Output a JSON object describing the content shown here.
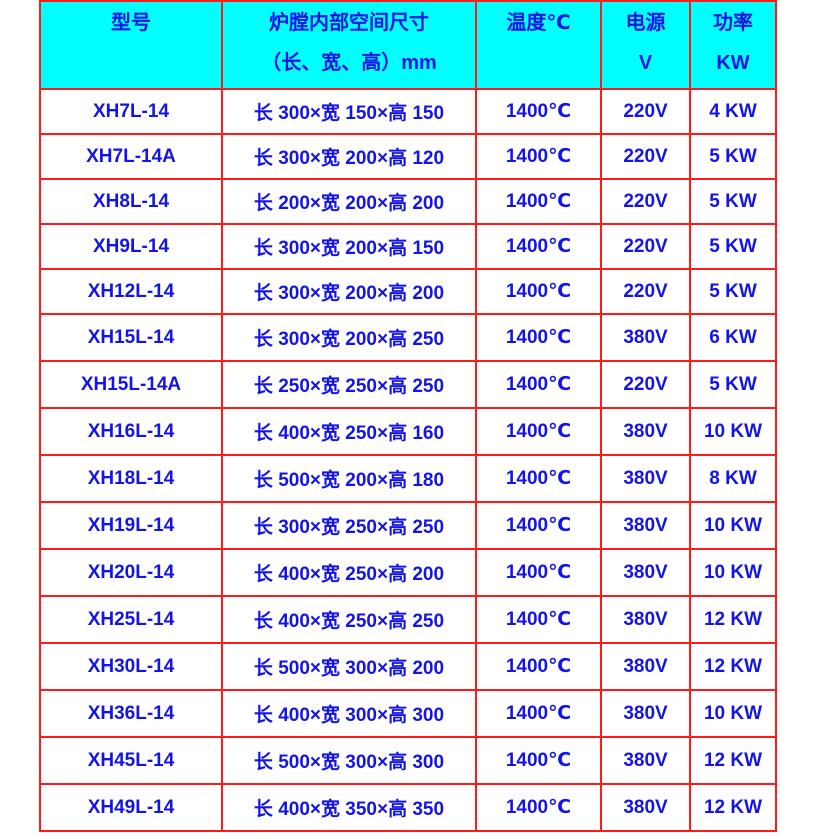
{
  "header": {
    "model": "型号",
    "chamber_line1": "炉膛内部空间尺寸",
    "chamber_line2": "（长、宽、高）mm",
    "temperature": "温度℃",
    "power_supply_line1": "电源",
    "power_supply_line2": "V",
    "power_line1": "功率",
    "power_line2": "KW"
  },
  "colors": {
    "border": "#ff1a1a",
    "header_bg": "#00ffff",
    "text": "#1414e6"
  },
  "rows": [
    {
      "model": "XH7L-14",
      "dims": "长 300×宽 150×高 150",
      "temp": "1400℃",
      "voltage": "220V",
      "power": "4 KW"
    },
    {
      "model": "XH7L-14A",
      "dims": "长 300×宽 200×高 120",
      "temp": "1400℃",
      "voltage": "220V",
      "power": "5 KW"
    },
    {
      "model": "XH8L-14",
      "dims": "长 200×宽 200×高 200",
      "temp": "1400℃",
      "voltage": "220V",
      "power": "5 KW"
    },
    {
      "model": "XH9L-14",
      "dims": "长 300×宽 200×高 150",
      "temp": "1400℃",
      "voltage": "220V",
      "power": "5 KW"
    },
    {
      "model": "XH12L-14",
      "dims": "长 300×宽 200×高 200",
      "temp": "1400℃",
      "voltage": "220V",
      "power": "5 KW"
    },
    {
      "model": "XH15L-14",
      "dims": "长 300×宽 200×高 250",
      "temp": "1400℃",
      "voltage": "380V",
      "power": "6 KW"
    },
    {
      "model": "XH15L-14A",
      "dims": "长 250×宽 250×高 250",
      "temp": "1400℃",
      "voltage": "220V",
      "power": "5 KW"
    },
    {
      "model": "XH16L-14",
      "dims": "长 400×宽 250×高 160",
      "temp": "1400℃",
      "voltage": "380V",
      "power": "10 KW"
    },
    {
      "model": "XH18L-14",
      "dims": "长 500×宽 200×高 180",
      "temp": "1400℃",
      "voltage": "380V",
      "power": "8 KW"
    },
    {
      "model": "XH19L-14",
      "dims": "长 300×宽 250×高 250",
      "temp": "1400℃",
      "voltage": "380V",
      "power": "10 KW"
    },
    {
      "model": "XH20L-14",
      "dims": "长 400×宽 250×高 200",
      "temp": "1400℃",
      "voltage": "380V",
      "power": "10 KW"
    },
    {
      "model": "XH25L-14",
      "dims": "长 400×宽 250×高 250",
      "temp": "1400℃",
      "voltage": "380V",
      "power": "12 KW"
    },
    {
      "model": "XH30L-14",
      "dims": "长 500×宽 300×高 200",
      "temp": "1400℃",
      "voltage": "380V",
      "power": "12 KW"
    },
    {
      "model": "XH36L-14",
      "dims": "长 400×宽 300×高 300",
      "temp": "1400℃",
      "voltage": "380V",
      "power": "10 KW"
    },
    {
      "model": "XH45L-14",
      "dims": "长 500×宽 300×高 300",
      "temp": "1400℃",
      "voltage": "380V",
      "power": "12 KW"
    },
    {
      "model": "XH49L-14",
      "dims": "长 400×宽 350×高 350",
      "temp": "1400℃",
      "voltage": "380V",
      "power": "12 KW"
    }
  ]
}
